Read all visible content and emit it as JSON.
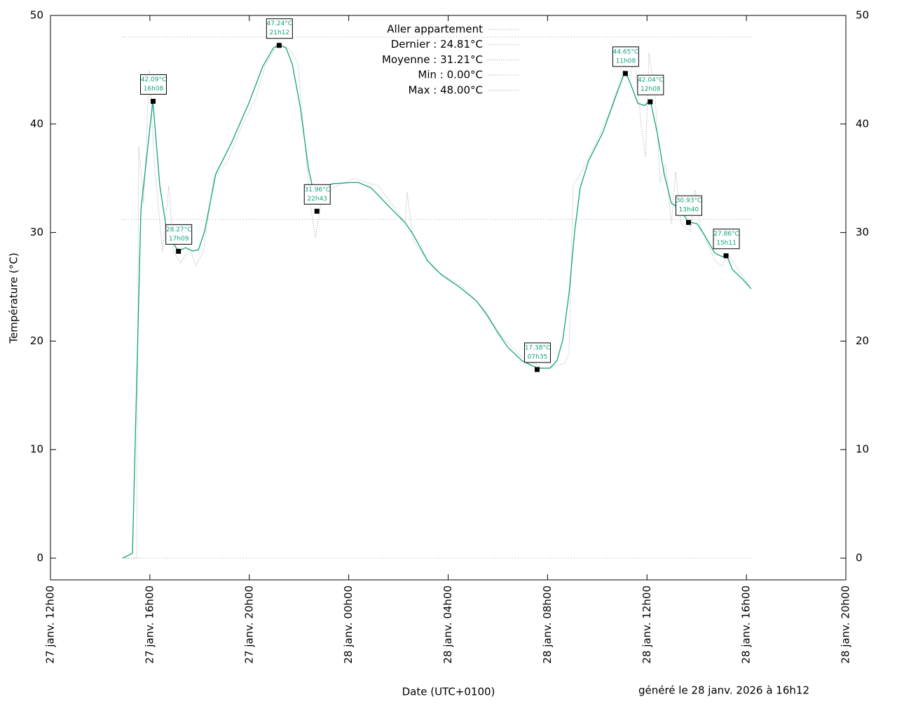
{
  "chart_data": {
    "type": "line",
    "y_label": "Température (°C)",
    "x_label": "Date (UTC+0100)",
    "footer": "généré le 28 janv. 2026 à 16h12",
    "xlim": [
      12,
      44
    ],
    "xticks": [
      {
        "value": 12,
        "label": "27 janv. 12h00"
      },
      {
        "value": 16,
        "label": "27 janv. 16h00"
      },
      {
        "value": 20,
        "label": "27 janv. 20h00"
      },
      {
        "value": 24,
        "label": "28 janv. 00h00"
      },
      {
        "value": 28,
        "label": "28 janv. 04h00"
      },
      {
        "value": 32,
        "label": "28 janv. 08h00"
      },
      {
        "value": 36,
        "label": "28 janv. 12h00"
      },
      {
        "value": 40,
        "label": "28 janv. 16h00"
      },
      {
        "value": 44,
        "label": "28 janv. 20h00"
      }
    ],
    "ylim": [
      -2,
      50
    ],
    "yticks": [
      0,
      10,
      20,
      30,
      40,
      50
    ],
    "y2lim": [
      -2,
      50
    ],
    "y2ticks": [
      0,
      10,
      20,
      30,
      40,
      50
    ],
    "series": [
      {
        "name": "Aller appartement",
        "color": "#a0a0a0",
        "dash": "dotted",
        "x": [
          14.9,
          15.47,
          15.55,
          15.75,
          15.98,
          16.17,
          16.51,
          16.76,
          16.96,
          17.24,
          17.58,
          17.86,
          18.15,
          18.57,
          19.13,
          19.7,
          20.26,
          20.68,
          21.19,
          21.67,
          21.95,
          22.23,
          22.43,
          22.66,
          22.88,
          23.36,
          24.21,
          25.19,
          25.9,
          26.27,
          26.35,
          26.6,
          27.45,
          28.58,
          29.42,
          30.13,
          30.97,
          31.82,
          32.67,
          32.86,
          33.03,
          33.37,
          33.93,
          34.5,
          35.06,
          35.34,
          35.48,
          35.77,
          35.94,
          36.08,
          36.33,
          36.53,
          36.75,
          36.98,
          37.15,
          37.37,
          37.74,
          37.94,
          38.16,
          38.73,
          39.01,
          39.29,
          40.19
        ],
        "values": [
          0,
          0,
          37.9,
          32.7,
          45.0,
          36.6,
          28.2,
          34.3,
          28.2,
          27.2,
          28.5,
          27.0,
          28.2,
          35.0,
          36.6,
          39.8,
          42.4,
          45.6,
          47.5,
          46.8,
          45.6,
          38.5,
          33.0,
          29.5,
          32.7,
          34.1,
          35.0,
          34.3,
          32.1,
          30.9,
          33.7,
          29.2,
          26.6,
          25.0,
          23.0,
          20.5,
          18.5,
          17.5,
          17.9,
          18.8,
          34.3,
          35.6,
          38.2,
          41.1,
          45.0,
          44.3,
          46.3,
          39.8,
          36.9,
          46.6,
          42.4,
          34.6,
          36.3,
          30.8,
          35.6,
          30.8,
          30.1,
          33.9,
          30.5,
          27.4,
          26.9,
          27.9,
          24.81
        ]
      },
      {
        "name": "Dernier : 24.81°C",
        "color": "#a0a0a0"
      },
      {
        "name": "Moyenne : 31.21°C",
        "value": 31.21,
        "color": "#a0a0a0"
      },
      {
        "name": "Min : 0.00°C",
        "value": 0,
        "color": "#a0a0a0"
      },
      {
        "name": "Max : 48.00°C",
        "value": 48,
        "color": "#a0a0a0"
      },
      {
        "color": "#11a37f",
        "x": [
          14.9,
          15.3,
          15.64,
          16.12,
          16.4,
          16.68,
          17.13,
          17.44,
          17.72,
          17.95,
          18.2,
          18.65,
          19.27,
          19.98,
          20.54,
          20.97,
          21.2,
          21.48,
          21.73,
          22.04,
          22.38,
          22.57,
          22.74,
          23.36,
          24.07,
          24.4,
          24.91,
          25.62,
          26.27,
          26.6,
          27.17,
          27.73,
          28.44,
          29.14,
          29.56,
          29.99,
          30.41,
          30.97,
          31.59,
          32.1,
          32.38,
          32.61,
          32.86,
          33.09,
          33.31,
          33.65,
          34.22,
          34.72,
          35.06,
          35.15,
          35.34,
          35.63,
          35.91,
          36.13,
          36.41,
          36.7,
          36.98,
          37.32,
          37.65,
          38.02,
          38.3,
          38.73,
          39.01,
          39.23,
          39.43,
          39.85,
          40.19
        ],
        "values": [
          0,
          0.45,
          32.1,
          42.1,
          34.3,
          30.1,
          28.3,
          28.6,
          28.3,
          28.4,
          30.1,
          35.4,
          38.2,
          41.9,
          45.3,
          47.0,
          47.3,
          47.0,
          45.5,
          41.7,
          35.9,
          33.9,
          34.0,
          34.5,
          34.6,
          34.6,
          34.1,
          32.4,
          30.9,
          29.8,
          27.4,
          26.1,
          25.0,
          23.7,
          22.4,
          20.8,
          19.4,
          18.2,
          17.5,
          17.5,
          18.2,
          20.1,
          24.3,
          30.1,
          34.1,
          36.6,
          39.2,
          42.4,
          44.5,
          44.7,
          43.7,
          41.9,
          41.7,
          42.2,
          39.2,
          35.3,
          32.7,
          32.2,
          31.0,
          30.8,
          29.8,
          28.1,
          27.8,
          27.8,
          26.6,
          25.7,
          24.81
        ]
      }
    ],
    "points": {
      "x": [
        16.13,
        17.15,
        21.2,
        22.72,
        31.58,
        35.13,
        36.13,
        37.67,
        39.18
      ],
      "values": [
        42.09,
        28.27,
        47.24,
        31.96,
        17.38,
        44.65,
        42.04,
        30.93,
        27.86
      ],
      "value_labels": [
        "42.09°C",
        "28.27°C",
        "47.24°C",
        "31.96°C",
        "17.38°C",
        "44.65°C",
        "42.04°C",
        "30.93°C",
        "27.86°C"
      ],
      "time_labels": [
        "16h08",
        "17h09",
        "21h12",
        "22h43",
        "07h35",
        "11h08",
        "12h08",
        "13h40",
        "15h11"
      ]
    }
  }
}
